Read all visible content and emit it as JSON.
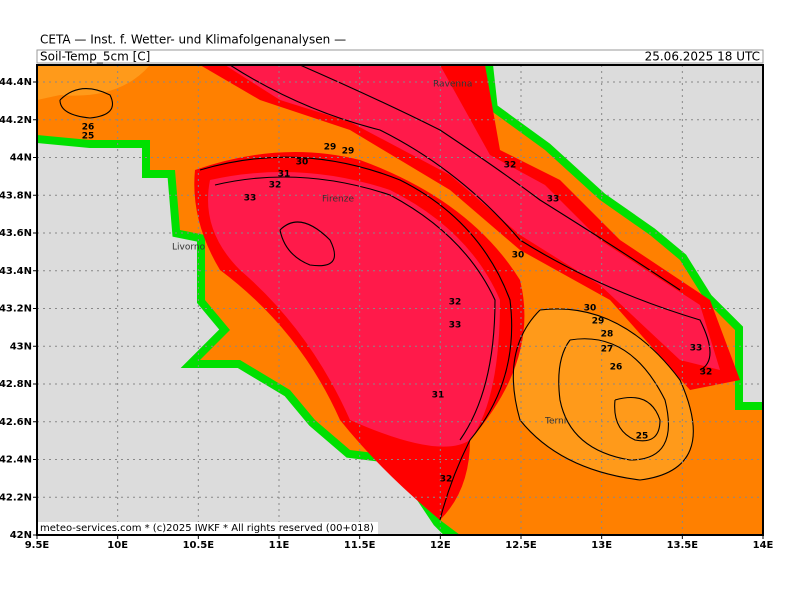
{
  "header": {
    "title": "CETA — Inst. f. Wetter- und Klimafolgenanalysen —",
    "field": "Soil-Temp_5cm [C]",
    "datetime": "25.06.2025 18 UTC"
  },
  "map": {
    "xticks": [
      {
        "value": 9.5,
        "label": "9.5E"
      },
      {
        "value": 10,
        "label": "10E"
      },
      {
        "value": 10.5,
        "label": "10.5E"
      },
      {
        "value": 11,
        "label": "11E"
      },
      {
        "value": 11.5,
        "label": "11.5E"
      },
      {
        "value": 12,
        "label": "12E"
      },
      {
        "value": 12.5,
        "label": "12.5E"
      },
      {
        "value": 13,
        "label": "13E"
      },
      {
        "value": 13.5,
        "label": "13.5E"
      },
      {
        "value": 14,
        "label": "14E"
      }
    ],
    "yticks": [
      {
        "value": 42,
        "label": "42N"
      },
      {
        "value": 42.2,
        "label": "42.2N"
      },
      {
        "value": 42.4,
        "label": "42.4N"
      },
      {
        "value": 42.6,
        "label": "42.6N"
      },
      {
        "value": 42.8,
        "label": "42.8N"
      },
      {
        "value": 43,
        "label": "43N"
      },
      {
        "value": 43.2,
        "label": "43.2N"
      },
      {
        "value": 43.4,
        "label": "43.4N"
      },
      {
        "value": 43.6,
        "label": "43.6N"
      },
      {
        "value": 43.8,
        "label": "43.8N"
      },
      {
        "value": 44,
        "label": "44N"
      },
      {
        "value": 44.2,
        "label": "44.2N"
      },
      {
        "value": 44.4,
        "label": "44.4N"
      }
    ],
    "cities": [
      "Ravenna",
      "Firenze",
      "Livorno",
      "Terni"
    ],
    "contour_labels": [
      "26",
      "25",
      "29",
      "29",
      "30",
      "31",
      "32",
      "33",
      "32",
      "33",
      "30",
      "32",
      "33",
      "30",
      "29",
      "28",
      "27",
      "26",
      "33",
      "32",
      "31",
      "25",
      "32"
    ]
  },
  "footer": "meteo-services.com * (c)2025 IWKF * All rights reserved (00+018)"
}
